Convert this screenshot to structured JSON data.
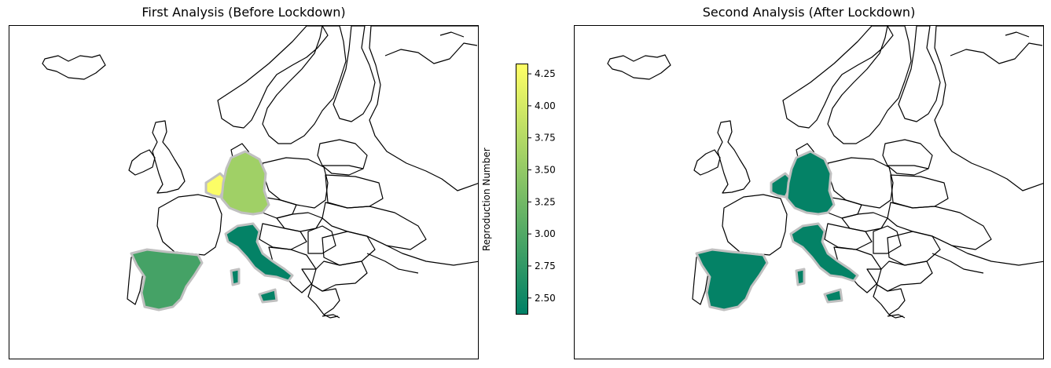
{
  "maps": [
    {
      "title": "First Analysis (Before Lockdown)",
      "countries": [
        {
          "name": "Switzerland",
          "value": 4.3
        },
        {
          "name": "Germany",
          "value": 3.6
        },
        {
          "name": "Spain",
          "value": 2.9
        },
        {
          "name": "Italy",
          "value": 2.4
        }
      ]
    },
    {
      "title": "Second Analysis (After Lockdown)",
      "countries": [
        {
          "name": "Switzerland",
          "value": 2.4
        },
        {
          "name": "Germany",
          "value": 2.4
        },
        {
          "name": "Spain",
          "value": 2.4
        },
        {
          "name": "Italy",
          "value": 2.4
        }
      ]
    }
  ],
  "colorbar": {
    "label": "Reproduction Number",
    "min": 2.37,
    "max": 4.33,
    "ticks": [
      "2.50",
      "2.75",
      "3.00",
      "3.25",
      "3.50",
      "3.75",
      "4.00",
      "4.25"
    ],
    "colormap": "summer",
    "colormap_low": "#008066",
    "colormap_high": "#ffff66"
  },
  "colors": {
    "highlight_border": "#c0c0c0",
    "country_border": "#000000"
  }
}
